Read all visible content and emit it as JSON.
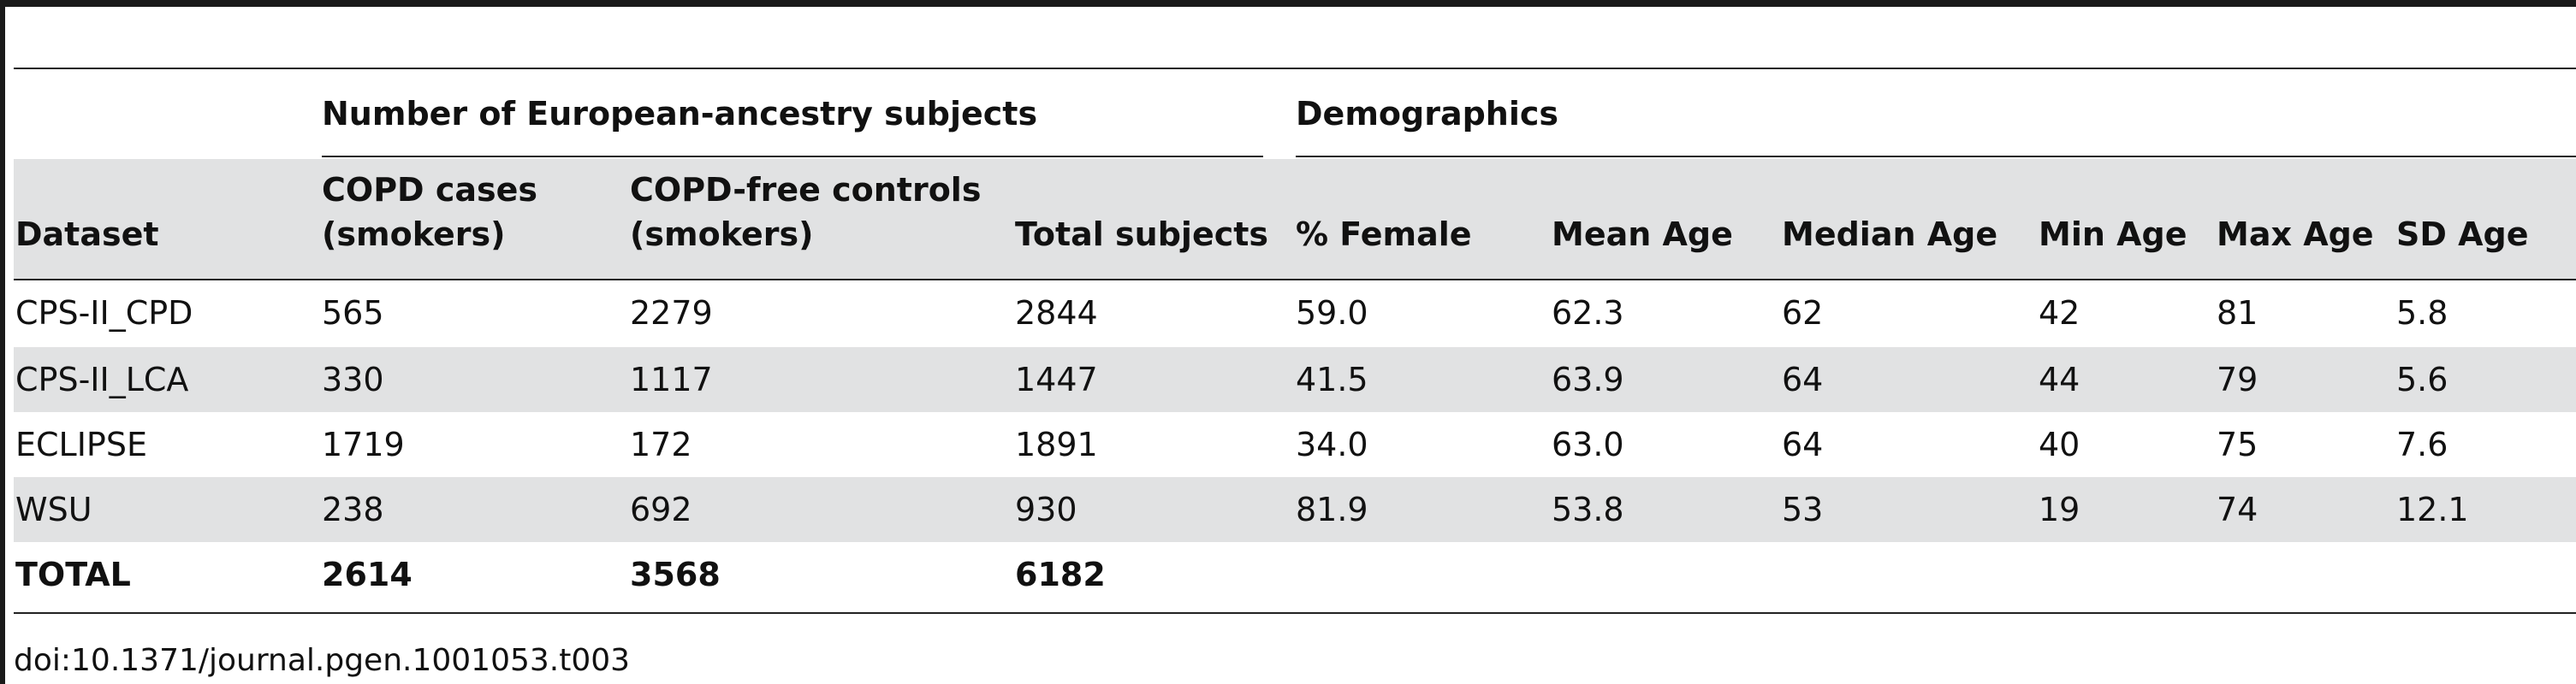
{
  "table": {
    "group_headers": {
      "subjects": "Number of European-ancestry subjects",
      "demographics": "Demographics"
    },
    "columns": {
      "dataset": "Dataset",
      "cases_line1": "COPD cases",
      "cases_line2": "(smokers)",
      "controls_line1": "COPD-free controls",
      "controls_line2": "(smokers)",
      "total": "Total subjects",
      "female": "% Female",
      "mean_age": "Mean Age",
      "median_age": "Median Age",
      "min_age": "Min Age",
      "max_age": "Max Age",
      "sd_age": "SD Age"
    },
    "rows": [
      {
        "dataset": "CPS-II_CPD",
        "cases": "565",
        "controls": "2279",
        "total": "2844",
        "female": "59.0",
        "mean_age": "62.3",
        "median_age": "62",
        "min_age": "42",
        "max_age": "81",
        "sd_age": "5.8"
      },
      {
        "dataset": "CPS-II_LCA",
        "cases": "330",
        "controls": "1117",
        "total": "1447",
        "female": "41.5",
        "mean_age": "63.9",
        "median_age": "64",
        "min_age": "44",
        "max_age": "79",
        "sd_age": "5.6"
      },
      {
        "dataset": "ECLIPSE",
        "cases": "1719",
        "controls": "172",
        "total": "1891",
        "female": "34.0",
        "mean_age": "63.0",
        "median_age": "64",
        "min_age": "40",
        "max_age": "75",
        "sd_age": "7.6"
      },
      {
        "dataset": "WSU",
        "cases": "238",
        "controls": "692",
        "total": "930",
        "female": "81.9",
        "mean_age": "53.8",
        "median_age": "53",
        "min_age": "19",
        "max_age": "74",
        "sd_age": "12.1"
      }
    ],
    "total_row": {
      "dataset": "TOTAL",
      "cases": "2614",
      "controls": "3568",
      "total": "6182"
    }
  },
  "doi": "doi:10.1371/journal.pgen.1001053.t003",
  "colors": {
    "band": "#e1e2e3",
    "rule": "#222222",
    "text": "#111111"
  }
}
